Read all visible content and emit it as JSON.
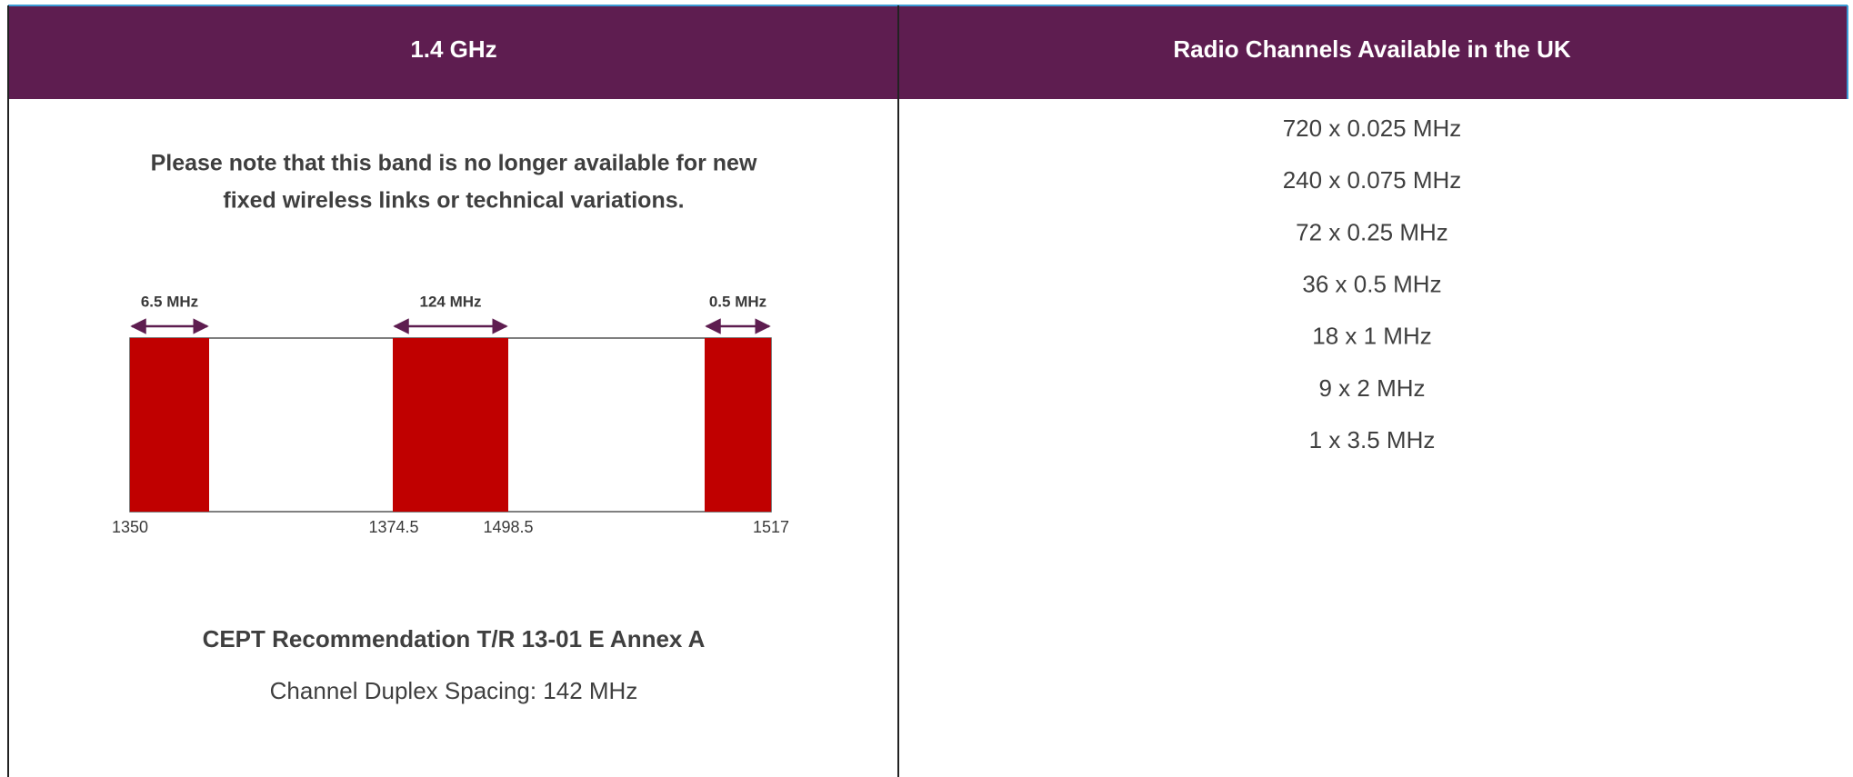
{
  "header": {
    "left": "1.4 GHz",
    "right": "Radio Channels Available in the UK"
  },
  "note": [
    "Please note that this band is no longer available for new",
    "fixed wireless links or technical variations."
  ],
  "diagram": {
    "bands": [
      "6.5 MHz",
      "124 MHz",
      "0.5 MHz"
    ],
    "ticks": [
      1350,
      1374.5,
      1498.5,
      1517
    ]
  },
  "recommendation": "CEPT Recommendation T/R 13-01 E Annex A",
  "duplex_spacing": "Channel Duplex Spacing: 142 MHz",
  "channels": [
    "720 x 0.025 MHz",
    "240 x 0.075 MHz",
    "72 x 0.25 MHz",
    "36 x 0.5 MHz",
    "18 x 1 MHz",
    "9 x 2 MHz",
    "1 x 3.5 MHz"
  ]
}
